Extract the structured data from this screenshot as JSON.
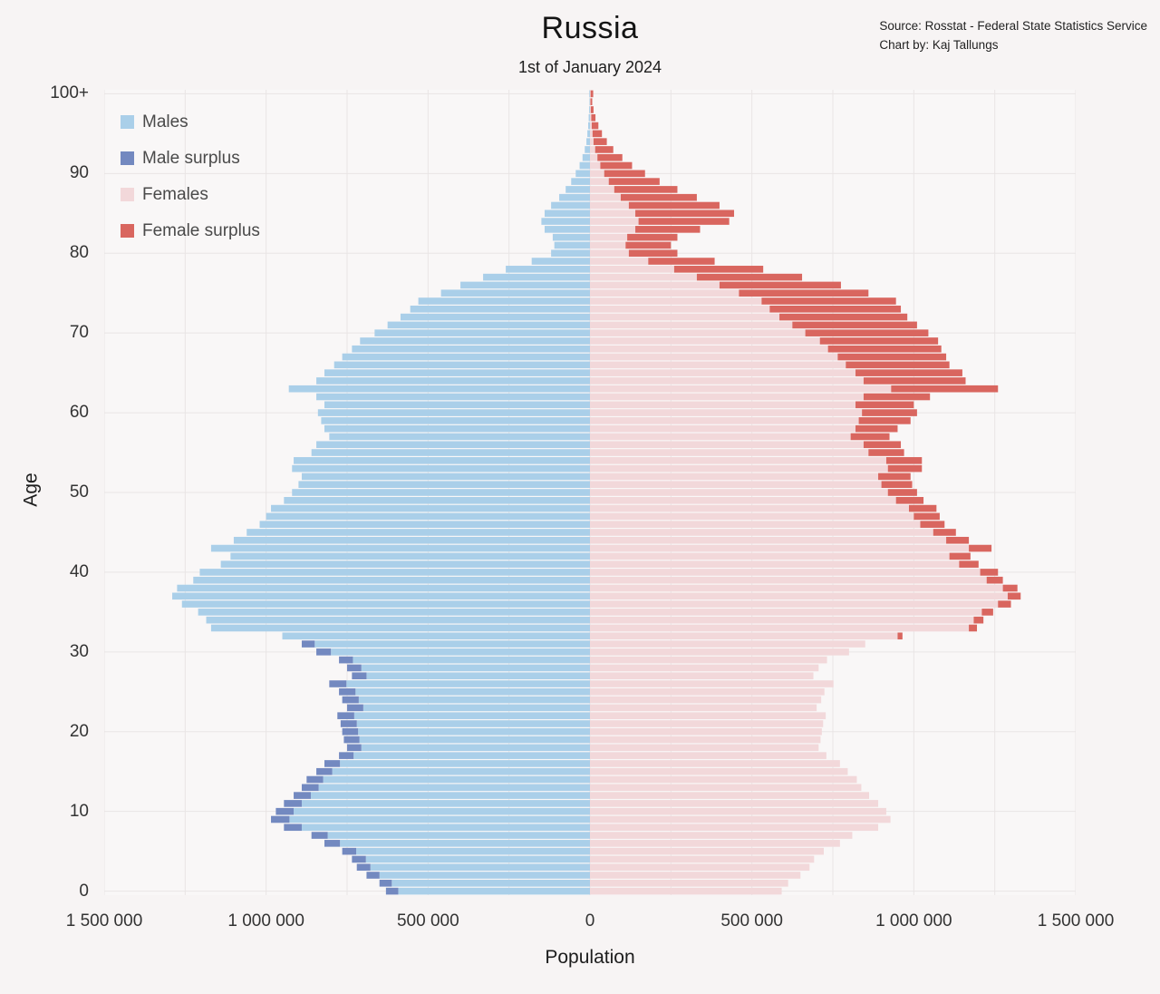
{
  "title": "Russia",
  "subtitle": "1st of January 2024",
  "source": {
    "line1": "Source: Rosstat - Federal State Statistics Service",
    "line2": "Chart by: Kaj Tallungs"
  },
  "axes": {
    "x_label": "Population",
    "y_label": "Age",
    "x_ticks": [
      "1 500 000",
      "1 000 000",
      "500 000",
      "0",
      "500 000",
      "1 000 000",
      "1 500 000"
    ],
    "x_tick_values": [
      -1500000,
      -1000000,
      -500000,
      0,
      500000,
      1000000,
      1500000
    ],
    "y_ticks": [
      "0",
      "10",
      "20",
      "30",
      "40",
      "50",
      "60",
      "70",
      "80",
      "90",
      "100+"
    ],
    "y_tick_values": [
      0,
      10,
      20,
      30,
      40,
      50,
      60,
      70,
      80,
      90,
      100
    ]
  },
  "legend": [
    {
      "label": "Males",
      "color": "#aacfe9"
    },
    {
      "label": "Male surplus",
      "color": "#7389c0"
    },
    {
      "label": "Females",
      "color": "#f2d8da"
    },
    {
      "label": "Female surplus",
      "color": "#d9665f"
    }
  ],
  "chart_data": {
    "type": "bar",
    "variant": "population-pyramid",
    "title": "Russia",
    "subtitle": "1st of January 2024",
    "xlabel": "Population",
    "ylabel": "Age",
    "x_max": 1500000,
    "grid": true,
    "minor_grid_step": 250000,
    "colors": {
      "males": "#aacfe9",
      "male_surplus": "#7389c0",
      "females": "#f2d8da",
      "female_surplus": "#d9665f"
    },
    "ages": [
      0,
      1,
      2,
      3,
      4,
      5,
      6,
      7,
      8,
      9,
      10,
      11,
      12,
      13,
      14,
      15,
      16,
      17,
      18,
      19,
      20,
      21,
      22,
      23,
      24,
      25,
      26,
      27,
      28,
      29,
      30,
      31,
      32,
      33,
      34,
      35,
      36,
      37,
      38,
      39,
      40,
      41,
      42,
      43,
      44,
      45,
      46,
      47,
      48,
      49,
      50,
      51,
      52,
      53,
      54,
      55,
      56,
      57,
      58,
      59,
      60,
      61,
      62,
      63,
      64,
      65,
      66,
      67,
      68,
      69,
      70,
      71,
      72,
      73,
      74,
      75,
      76,
      77,
      78,
      79,
      80,
      81,
      82,
      83,
      84,
      85,
      86,
      87,
      88,
      89,
      90,
      91,
      92,
      93,
      94,
      95,
      96,
      97,
      98,
      99,
      100
    ],
    "series": [
      {
        "name": "Males",
        "values": [
          630000,
          650000,
          690000,
          720000,
          735000,
          765000,
          820000,
          860000,
          945000,
          985000,
          970000,
          945000,
          915000,
          890000,
          875000,
          845000,
          820000,
          775000,
          750000,
          760000,
          765000,
          770000,
          780000,
          750000,
          765000,
          775000,
          805000,
          735000,
          750000,
          775000,
          845000,
          890000,
          950000,
          1170000,
          1185000,
          1210000,
          1260000,
          1290000,
          1275000,
          1225000,
          1205000,
          1140000,
          1110000,
          1170000,
          1100000,
          1060000,
          1020000,
          1000000,
          985000,
          945000,
          920000,
          900000,
          890000,
          920000,
          915000,
          860000,
          845000,
          805000,
          820000,
          830000,
          840000,
          820000,
          845000,
          930000,
          845000,
          820000,
          790000,
          765000,
          735000,
          710000,
          665000,
          625000,
          585000,
          555000,
          530000,
          460000,
          400000,
          330000,
          260000,
          180000,
          120000,
          110000,
          115000,
          140000,
          150000,
          140000,
          120000,
          95000,
          75000,
          58000,
          44000,
          32000,
          23000,
          16000,
          11000,
          8000,
          5500,
          4000,
          2500,
          1500,
          2000
        ]
      },
      {
        "name": "Females",
        "values": [
          592000,
          612000,
          650000,
          678000,
          692000,
          722000,
          772000,
          810000,
          890000,
          928000,
          915000,
          890000,
          862000,
          838000,
          824000,
          796000,
          772000,
          730000,
          706000,
          712000,
          716000,
          720000,
          728000,
          700000,
          714000,
          724000,
          752000,
          690000,
          706000,
          732000,
          800000,
          850000,
          965000,
          1195000,
          1215000,
          1245000,
          1300000,
          1330000,
          1320000,
          1275000,
          1260000,
          1200000,
          1175000,
          1240000,
          1170000,
          1130000,
          1095000,
          1080000,
          1070000,
          1030000,
          1010000,
          995000,
          990000,
          1025000,
          1025000,
          970000,
          960000,
          925000,
          950000,
          990000,
          1010000,
          1000000,
          1050000,
          1260000,
          1160000,
          1150000,
          1110000,
          1100000,
          1085000,
          1075000,
          1045000,
          1010000,
          980000,
          960000,
          945000,
          860000,
          775000,
          655000,
          535000,
          385000,
          270000,
          250000,
          270000,
          340000,
          430000,
          445000,
          400000,
          330000,
          270000,
          215000,
          170000,
          130000,
          100000,
          72000,
          52000,
          37000,
          26000,
          17000,
          11000,
          7000,
          10000
        ]
      }
    ]
  }
}
